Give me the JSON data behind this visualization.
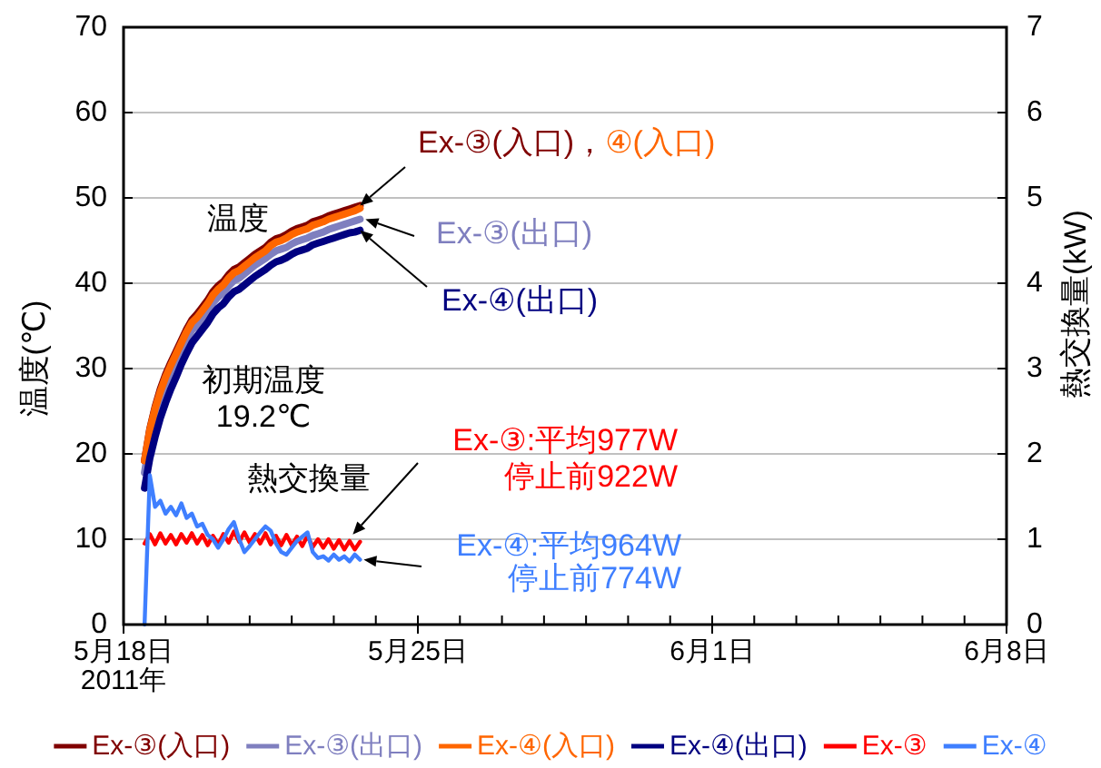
{
  "chart_data": {
    "type": "line",
    "x": [
      "2011-05-18T12:00",
      "2011-05-18T15:00",
      "2011-05-18T18:00",
      "2011-05-18T21:00",
      "2011-05-19T00:00",
      "2011-05-19T03:00",
      "2011-05-19T06:00",
      "2011-05-19T09:00",
      "2011-05-19T12:00",
      "2011-05-19T15:00",
      "2011-05-19T18:00",
      "2011-05-19T21:00",
      "2011-05-20T00:00",
      "2011-05-20T03:00",
      "2011-05-20T06:00",
      "2011-05-20T09:00",
      "2011-05-20T12:00",
      "2011-05-20T15:00",
      "2011-05-20T18:00",
      "2011-05-20T21:00",
      "2011-05-21T00:00",
      "2011-05-21T03:00",
      "2011-05-21T06:00",
      "2011-05-21T09:00",
      "2011-05-21T12:00",
      "2011-05-21T15:00",
      "2011-05-21T18:00",
      "2011-05-21T21:00",
      "2011-05-22T00:00",
      "2011-05-22T03:00",
      "2011-05-22T06:00",
      "2011-05-22T09:00",
      "2011-05-22T12:00",
      "2011-05-22T15:00",
      "2011-05-22T18:00",
      "2011-05-22T21:00",
      "2011-05-23T00:00",
      "2011-05-23T03:00",
      "2011-05-23T06:00",
      "2011-05-23T09:00",
      "2011-05-23T12:00",
      "2011-05-23T15:00"
    ],
    "xlim": [
      "2011-05-18",
      "2011-06-08"
    ],
    "xticks": [
      {
        "value": "2011-05-18",
        "label": "5月18日\n2011年"
      },
      {
        "value": "2011-05-19",
        "label": null
      },
      {
        "value": "2011-05-20",
        "label": null
      },
      {
        "value": "2011-05-21",
        "label": null
      },
      {
        "value": "2011-05-22",
        "label": null
      },
      {
        "value": "2011-05-23",
        "label": null
      },
      {
        "value": "2011-05-24",
        "label": null
      },
      {
        "value": "2011-05-25",
        "label": "5月25日"
      },
      {
        "value": "2011-05-26",
        "label": null
      },
      {
        "value": "2011-05-27",
        "label": null
      },
      {
        "value": "2011-05-28",
        "label": null
      },
      {
        "value": "2011-05-29",
        "label": null
      },
      {
        "value": "2011-05-30",
        "label": null
      },
      {
        "value": "2011-05-31",
        "label": null
      },
      {
        "value": "2011-06-01",
        "label": "6月1日"
      },
      {
        "value": "2011-06-02",
        "label": null
      },
      {
        "value": "2011-06-03",
        "label": null
      },
      {
        "value": "2011-06-04",
        "label": null
      },
      {
        "value": "2011-06-05",
        "label": null
      },
      {
        "value": "2011-06-06",
        "label": null
      },
      {
        "value": "2011-06-07",
        "label": null
      },
      {
        "value": "2011-06-08",
        "label": "6月8日"
      }
    ],
    "ylim": [
      0,
      70
    ],
    "yticks": [
      0,
      10,
      20,
      30,
      40,
      50,
      60,
      70
    ],
    "y2lim": [
      0,
      7
    ],
    "y2ticks": [
      0,
      1,
      2,
      3,
      4,
      5,
      6,
      7
    ],
    "ylabel": "温度(℃)",
    "y2label": "熱交換量(kW)",
    "grid": "y",
    "legend": "bottom",
    "series": [
      {
        "name": "Ex-③(入口)",
        "color": "#800000",
        "values": [
          19.2,
          22.9,
          25.5,
          27.6,
          29.3,
          30.7,
          32.0,
          33.3,
          34.6,
          35.7,
          36.4,
          37.2,
          38.0,
          39.0,
          39.7,
          40.2,
          41.0,
          41.6,
          41.9,
          42.4,
          42.9,
          43.4,
          43.8,
          44.2,
          44.8,
          45.2,
          45.4,
          45.7,
          46.1,
          46.4,
          46.6,
          46.8,
          47.2,
          47.4,
          47.6,
          47.9,
          48.1,
          48.3,
          48.5,
          48.7,
          48.9,
          49.1
        ]
      },
      {
        "name": "Ex-③(出口)",
        "color": "#7f7fbf",
        "values": [
          17.8,
          21.6,
          24.3,
          26.4,
          28.1,
          29.5,
          30.8,
          32.1,
          33.4,
          34.5,
          35.1,
          35.9,
          36.7,
          37.7,
          38.4,
          38.9,
          39.7,
          40.3,
          40.6,
          41.1,
          41.6,
          42.1,
          42.5,
          42.9,
          43.4,
          43.8,
          44.0,
          44.2,
          44.6,
          44.9,
          45.1,
          45.3,
          45.6,
          45.8,
          46.0,
          46.3,
          46.5,
          46.7,
          46.9,
          47.1,
          47.3,
          47.5
        ]
      },
      {
        "name": "Ex-④(入口)",
        "color": "#ff6600",
        "values": [
          19.2,
          22.8,
          25.3,
          27.3,
          29.0,
          30.4,
          31.7,
          33.0,
          34.3,
          35.4,
          36.0,
          36.8,
          37.6,
          38.6,
          39.3,
          39.8,
          40.6,
          41.2,
          41.5,
          42.0,
          42.5,
          43.0,
          43.4,
          43.8,
          44.4,
          44.8,
          45.0,
          45.3,
          45.7,
          46.0,
          46.2,
          46.4,
          46.8,
          47.0,
          47.2,
          47.5,
          47.7,
          47.9,
          48.1,
          48.3,
          48.5,
          48.8
        ]
      },
      {
        "name": "Ex-④(出口)",
        "color": "#000080",
        "values": [
          16.0,
          19.5,
          22.0,
          24.2,
          26.0,
          27.6,
          29.0,
          30.5,
          31.8,
          33.0,
          33.8,
          34.6,
          35.4,
          36.4,
          37.1,
          37.6,
          38.4,
          39.0,
          39.3,
          39.8,
          40.3,
          40.8,
          41.2,
          41.6,
          42.1,
          42.5,
          42.7,
          43.0,
          43.4,
          43.7,
          43.9,
          44.1,
          44.5,
          44.7,
          44.9,
          45.1,
          45.3,
          45.5,
          45.7,
          45.9,
          46.0,
          46.2
        ]
      },
      {
        "name": "Ex-③",
        "color": "#ff0000",
        "axis": "y2",
        "values": [
          0.95,
          1.06,
          0.94,
          1.07,
          0.95,
          1.05,
          0.94,
          1.06,
          0.96,
          1.07,
          0.95,
          1.05,
          0.93,
          1.04,
          0.94,
          1.06,
          0.96,
          1.09,
          0.97,
          1.08,
          0.96,
          1.06,
          0.95,
          1.07,
          0.94,
          1.04,
          0.93,
          1.05,
          0.93,
          1.03,
          0.92,
          1.04,
          0.91,
          1.0,
          0.9,
          1.0,
          0.89,
          0.99,
          0.88,
          0.98,
          0.88,
          0.97
        ]
      },
      {
        "name": "Ex-④",
        "color": "#3f7fff",
        "axis": "y2",
        "values": [
          0,
          1.75,
          1.38,
          1.45,
          1.3,
          1.38,
          1.28,
          1.42,
          1.25,
          1.3,
          1.15,
          1.18,
          1.05,
          1.0,
          0.9,
          1.0,
          1.12,
          1.2,
          1.0,
          0.85,
          0.92,
          1.0,
          1.08,
          1.15,
          1.1,
          0.95,
          0.85,
          0.82,
          0.9,
          0.98,
          1.03,
          1.08,
          0.85,
          0.78,
          0.8,
          0.75,
          0.82,
          0.76,
          0.8,
          0.74,
          0.82,
          0.76
        ]
      }
    ],
    "annotations": [
      "温度",
      "初期温度\n19.2℃",
      "熱交換量",
      "Ex-③(入口)，",
      "④(入口)",
      "Ex-③(出口)",
      "Ex-④(出口)",
      "Ex-③:平均977W\n停止前922W",
      "Ex-④:平均964W\n停止前774W"
    ]
  }
}
